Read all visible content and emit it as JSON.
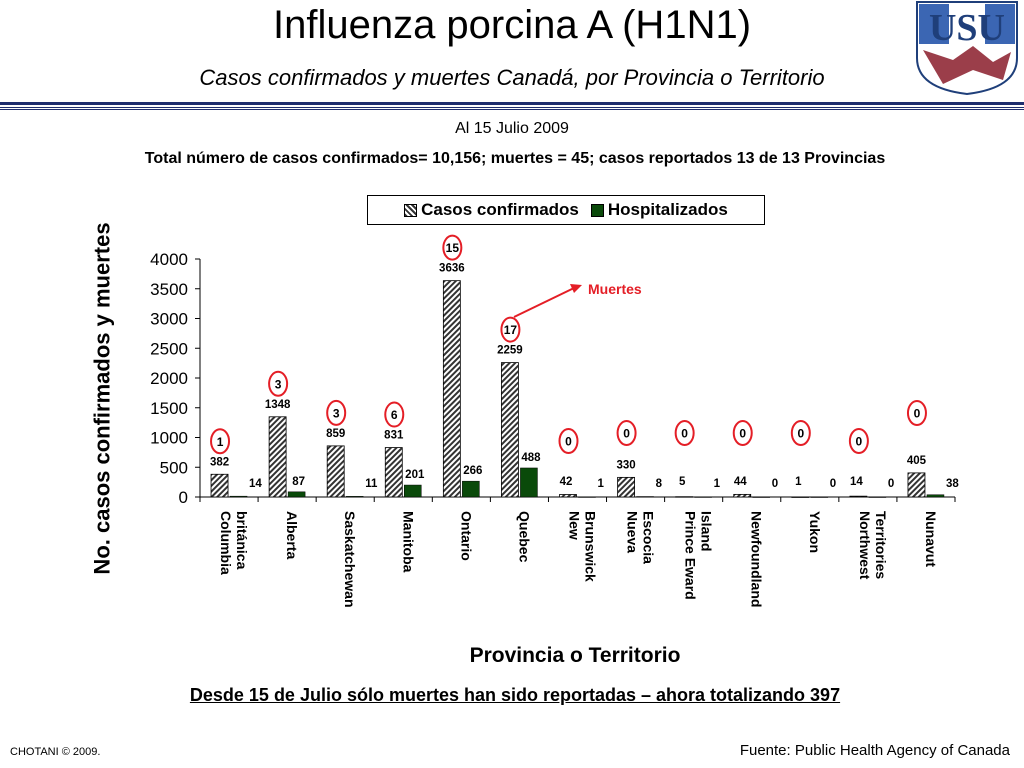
{
  "header": {
    "title": "Influenza porcina A (H1N1)",
    "subtitle": "Casos confirmados y muertes Canadá, por Provincia o Territorio"
  },
  "logo_text": "USU",
  "date_line": "Al 15 Julio 2009",
  "summary": "Total número de casos confirmados= 10,156; muertes = 45; casos reportados 13 de 13 Provincias",
  "annotation": "Muertes",
  "footnote": "Desde 15 de Julio sólo muertes han sido reportadas – ahora totalizando 397",
  "copyright": "CHOTANI © 2009.",
  "source": "Fuente: Public Health Agency of Canada",
  "colors": {
    "hosp": "#0a4a0a",
    "circle": "#e41e26",
    "rule": "#1f2e6e"
  },
  "chart_data": {
    "type": "bar",
    "xlabel": "Provincia o Territorio",
    "ylabel": "No. casos confirmados y muertes",
    "ylim": [
      0,
      4000
    ],
    "yticks": [
      "0",
      "500",
      "1000",
      "1500",
      "2000",
      "2500",
      "3000",
      "3500",
      "4000"
    ],
    "legend_position": "top",
    "categories": [
      "Columbia británica",
      "Alberta",
      "Saskatchewan",
      "Manitoba",
      "Ontario",
      "Quebec",
      "New Brunswick",
      "Nueva Escocia",
      "Prince Eward Island",
      "Newfoundland",
      "Yukon",
      "Northwest Territories",
      "Nunavut"
    ],
    "series": [
      {
        "name": "Casos confirmados",
        "values": [
          382,
          1348,
          859,
          831,
          3636,
          2259,
          42,
          330,
          5,
          44,
          1,
          14,
          405
        ]
      },
      {
        "name": "Hospitalizados",
        "values": [
          14,
          87,
          11,
          201,
          266,
          488,
          1,
          8,
          1,
          0,
          0,
          0,
          38
        ]
      }
    ],
    "deaths": [
      1,
      3,
      3,
      6,
      15,
      17,
      0,
      0,
      0,
      0,
      0,
      0,
      0
    ]
  }
}
